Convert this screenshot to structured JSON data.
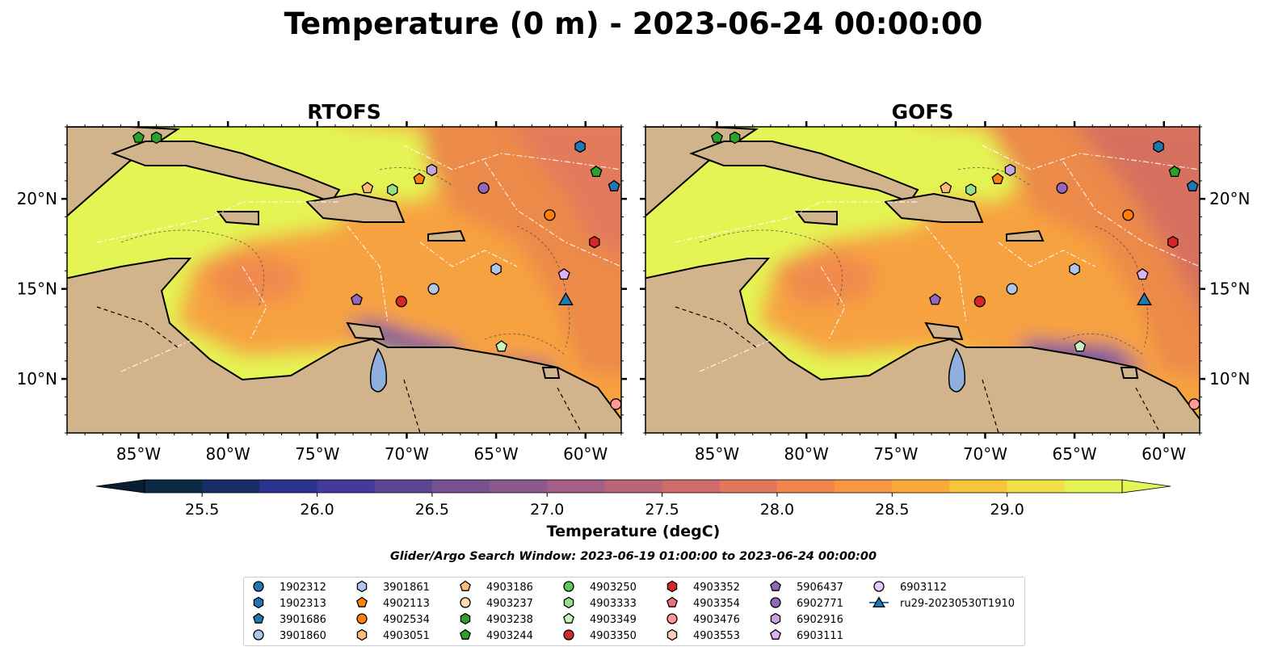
{
  "title": "Temperature (0 m) - 2023-06-24 00:00:00",
  "panels": [
    {
      "name": "RTOFS"
    },
    {
      "name": "GOFS"
    }
  ],
  "map_extent": {
    "lon_min": -89,
    "lon_max": -58,
    "lat_min": 7,
    "lat_max": 24
  },
  "x_ticks": [
    {
      "value": -85,
      "label": "85°W"
    },
    {
      "value": -80,
      "label": "80°W"
    },
    {
      "value": -75,
      "label": "75°W"
    },
    {
      "value": -70,
      "label": "70°W"
    },
    {
      "value": -65,
      "label": "65°W"
    },
    {
      "value": -60,
      "label": "60°W"
    }
  ],
  "y_ticks": [
    {
      "value": 20,
      "label": "20°N"
    },
    {
      "value": 15,
      "label": "15°N"
    },
    {
      "value": 10,
      "label": "10°N"
    }
  ],
  "colorbar": {
    "label": "Temperature (degC)",
    "min": 25.25,
    "max": 29.5,
    "step": 0.25,
    "extend": "both",
    "ticks": [
      "25.5",
      "26.0",
      "26.5",
      "27.0",
      "27.5",
      "28.0",
      "28.5",
      "29.0"
    ],
    "colors": [
      "#0c2a44",
      "#1a2e66",
      "#2b3391",
      "#453a9c",
      "#5d4596",
      "#775191",
      "#8d598d",
      "#a45f86",
      "#ba6578",
      "#cf6c6b",
      "#e4765e",
      "#f3854c",
      "#f9963f",
      "#fbaa3a",
      "#f6c43d",
      "#f0e04a",
      "#e6f356"
    ],
    "low_color": "#0a1e33",
    "high_color": "#e4f454"
  },
  "colors": {
    "land": "#d2b48c",
    "warm_sea": "#e4f454",
    "orange_sea": "#f7a23f",
    "deep_orange": "#ec8a4a",
    "purple_sea": "#8a5a92",
    "lake": "#8fb0de"
  },
  "search_window": "Glider/Argo Search Window: 2023-06-19 01:00:00 to 2023-06-24 00:00:00",
  "legend": [
    {
      "label": "1902312",
      "marker": "circle",
      "color": "#1f77b4"
    },
    {
      "label": "1902313",
      "marker": "hexagon",
      "color": "#1f77b4"
    },
    {
      "label": "3901686",
      "marker": "pentagon",
      "color": "#1f77b4"
    },
    {
      "label": "3901860",
      "marker": "circle",
      "color": "#aec7e8"
    },
    {
      "label": "3901861",
      "marker": "hexagon",
      "color": "#aec7e8"
    },
    {
      "label": "4902113",
      "marker": "pentagon",
      "color": "#ff7f0e"
    },
    {
      "label": "4902534",
      "marker": "circle",
      "color": "#ff7f0e"
    },
    {
      "label": "4903051",
      "marker": "hexagon",
      "color": "#ffbb78"
    },
    {
      "label": "4903186",
      "marker": "pentagon",
      "color": "#ffbb78"
    },
    {
      "label": "4903237",
      "marker": "circle",
      "color": "#ffdcb4"
    },
    {
      "label": "4903238",
      "marker": "hexagon",
      "color": "#2ca02c"
    },
    {
      "label": "4903244",
      "marker": "pentagon",
      "color": "#2ca02c"
    },
    {
      "label": "4903250",
      "marker": "circle",
      "color": "#5cc85c"
    },
    {
      "label": "4903333",
      "marker": "hexagon",
      "color": "#98df8a"
    },
    {
      "label": "4903349",
      "marker": "pentagon",
      "color": "#c7f2c0"
    },
    {
      "label": "4903350",
      "marker": "circle",
      "color": "#d62728"
    },
    {
      "label": "4903352",
      "marker": "hexagon",
      "color": "#d62728"
    },
    {
      "label": "4903354",
      "marker": "pentagon",
      "color": "#e8707a"
    },
    {
      "label": "4903476",
      "marker": "circle",
      "color": "#ff9896"
    },
    {
      "label": "4903553",
      "marker": "hexagon",
      "color": "#ffc8c0"
    },
    {
      "label": "5906437",
      "marker": "pentagon",
      "color": "#9467bd"
    },
    {
      "label": "6902771",
      "marker": "circle",
      "color": "#9467bd"
    },
    {
      "label": "6902916",
      "marker": "hexagon",
      "color": "#c5a5e0"
    },
    {
      "label": "6903111",
      "marker": "pentagon",
      "color": "#dcb3f0"
    },
    {
      "label": "6903112",
      "marker": "circle",
      "color": "#e8c8f8"
    },
    {
      "label": "ru29-20230530T1910",
      "marker": "triangle-line",
      "color": "#1f77b4"
    }
  ],
  "floats": [
    {
      "id": "4903244",
      "lon": -85.0,
      "lat": 23.4
    },
    {
      "id": "4903238",
      "lon": -84.0,
      "lat": 23.4
    },
    {
      "id": "4903186",
      "lon": -72.2,
      "lat": 20.6
    },
    {
      "id": "4903333",
      "lon": -70.8,
      "lat": 20.5
    },
    {
      "id": "4902113",
      "lon": -69.3,
      "lat": 21.1
    },
    {
      "id": "6902916",
      "lon": -68.6,
      "lat": 21.6
    },
    {
      "id": "6902771",
      "lon": -65.7,
      "lat": 20.6
    },
    {
      "id": "4902534",
      "lon": -62.0,
      "lat": 19.1
    },
    {
      "id": "1902313",
      "lon": -60.3,
      "lat": 22.9
    },
    {
      "id": "4903244",
      "lon": -59.4,
      "lat": 21.5
    },
    {
      "id": "3901686",
      "lon": -58.4,
      "lat": 20.7
    },
    {
      "id": "4903352",
      "lon": -59.5,
      "lat": 17.6
    },
    {
      "id": "3901861",
      "lon": -65.0,
      "lat": 16.1
    },
    {
      "id": "6903111",
      "lon": -61.2,
      "lat": 15.8
    },
    {
      "id": "3901860",
      "lon": -68.5,
      "lat": 15.0
    },
    {
      "id": "5906437",
      "lon": -72.8,
      "lat": 14.4
    },
    {
      "id": "4903350",
      "lon": -70.3,
      "lat": 14.3
    },
    {
      "id": "4903349",
      "lon": -64.7,
      "lat": 11.8
    },
    {
      "id": "4903476",
      "lon": -58.3,
      "lat": 8.6
    }
  ],
  "glider": {
    "id": "ru29-20230530T1910",
    "lon": -61.1,
    "lat": 14.4
  }
}
